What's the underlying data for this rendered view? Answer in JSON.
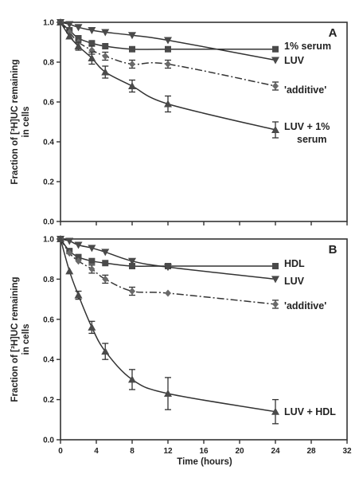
{
  "chart_data": [
    {
      "type": "line",
      "panel_label": "A",
      "xlabel": "",
      "ylabel": "Fraction of [³H]UC remaining in cells",
      "ylabel_lines": [
        "Fraction of [³H]UC remaining",
        "in cells"
      ],
      "xlim": [
        0,
        32
      ],
      "ylim": [
        0,
        1.0
      ],
      "xticks": [
        0,
        4,
        8,
        12,
        16,
        20,
        24,
        28,
        32
      ],
      "yticks": [
        0.0,
        0.2,
        0.4,
        0.6,
        0.8,
        1.0
      ],
      "grid": false,
      "legend": "inline labels at right end of curves",
      "series": [
        {
          "name": "1% serum",
          "label_lines": [
            "1% serum"
          ],
          "marker": "square",
          "line": "solid",
          "x": [
            0,
            1,
            2,
            3.5,
            5,
            8,
            12,
            24
          ],
          "y": [
            1.0,
            0.96,
            0.92,
            0.895,
            0.88,
            0.865,
            0.865,
            0.865
          ],
          "err": [
            0,
            0,
            0,
            0,
            0,
            0,
            0,
            0
          ]
        },
        {
          "name": "LUV",
          "label_lines": [
            "LUV"
          ],
          "marker": "triangle-down",
          "line": "solid",
          "x": [
            0,
            1,
            2,
            3.5,
            5,
            8,
            12,
            24
          ],
          "y": [
            1.0,
            0.99,
            0.975,
            0.96,
            0.95,
            0.935,
            0.91,
            0.81
          ],
          "err": [
            0,
            0,
            0,
            0,
            0,
            0,
            0,
            0
          ]
        },
        {
          "name": "'additive'",
          "label_lines": [
            "'additive'"
          ],
          "marker": "diamond",
          "line": "dash-dot",
          "x": [
            0,
            1,
            2,
            3.5,
            5,
            8,
            12,
            24
          ],
          "y": [
            1.0,
            0.95,
            0.9,
            0.86,
            0.83,
            0.79,
            0.79,
            0.68
          ],
          "err": [
            0,
            0,
            0,
            0.02,
            0.02,
            0.02,
            0.02,
            0.02
          ]
        },
        {
          "name": "LUV + 1% serum",
          "label_lines": [
            "LUV + 1%",
            "serum"
          ],
          "marker": "triangle-up",
          "line": "solid",
          "x": [
            0,
            1,
            2,
            3.5,
            5,
            8,
            12,
            24
          ],
          "y": [
            1.0,
            0.93,
            0.88,
            0.82,
            0.75,
            0.68,
            0.59,
            0.46
          ],
          "err": [
            0,
            0,
            0.02,
            0.03,
            0.03,
            0.03,
            0.04,
            0.04
          ]
        }
      ]
    },
    {
      "type": "line",
      "panel_label": "B",
      "xlabel": "Time (hours)",
      "ylabel": "Fraction of [³H]UC remaining in cells",
      "ylabel_lines": [
        "Fraction of [³H]UC remaining",
        "in cells"
      ],
      "xlim": [
        0,
        32
      ],
      "ylim": [
        0,
        1.0
      ],
      "xticks": [
        0,
        4,
        8,
        12,
        16,
        20,
        24,
        28,
        32
      ],
      "yticks": [
        0.0,
        0.2,
        0.4,
        0.6,
        0.8,
        1.0
      ],
      "grid": false,
      "legend": "inline labels at right end of curves",
      "series": [
        {
          "name": "HDL",
          "label_lines": [
            "HDL"
          ],
          "marker": "square",
          "line": "solid",
          "x": [
            0,
            1,
            2,
            3.5,
            5,
            8,
            12,
            24
          ],
          "y": [
            1.0,
            0.94,
            0.91,
            0.89,
            0.88,
            0.865,
            0.865,
            0.865
          ],
          "err": [
            0,
            0,
            0,
            0,
            0,
            0,
            0,
            0
          ]
        },
        {
          "name": "LUV",
          "label_lines": [
            "LUV"
          ],
          "marker": "triangle-down",
          "line": "solid",
          "x": [
            0,
            1,
            2,
            3.5,
            5,
            8,
            12,
            24
          ],
          "y": [
            1.0,
            0.99,
            0.97,
            0.955,
            0.935,
            0.89,
            0.86,
            0.8
          ],
          "err": [
            0,
            0,
            0,
            0,
            0,
            0,
            0,
            0
          ]
        },
        {
          "name": "'additive'",
          "label_lines": [
            "'additive'"
          ],
          "marker": "diamond",
          "line": "dash-dot",
          "x": [
            0,
            1,
            2,
            3.5,
            5,
            8,
            12,
            24
          ],
          "y": [
            1.0,
            0.93,
            0.89,
            0.85,
            0.8,
            0.74,
            0.73,
            0.675
          ],
          "err": [
            0,
            0,
            0,
            0.02,
            0.02,
            0.02,
            0.0,
            0.02
          ]
        },
        {
          "name": "LUV + HDL",
          "label_lines": [
            "LUV + HDL"
          ],
          "marker": "triangle-up",
          "line": "solid",
          "x": [
            0,
            1,
            2,
            3.5,
            5,
            8,
            12,
            24
          ],
          "y": [
            1.0,
            0.84,
            0.72,
            0.56,
            0.44,
            0.3,
            0.23,
            0.14
          ],
          "err": [
            0,
            0,
            0.02,
            0.03,
            0.04,
            0.05,
            0.08,
            0.06
          ]
        }
      ]
    }
  ]
}
